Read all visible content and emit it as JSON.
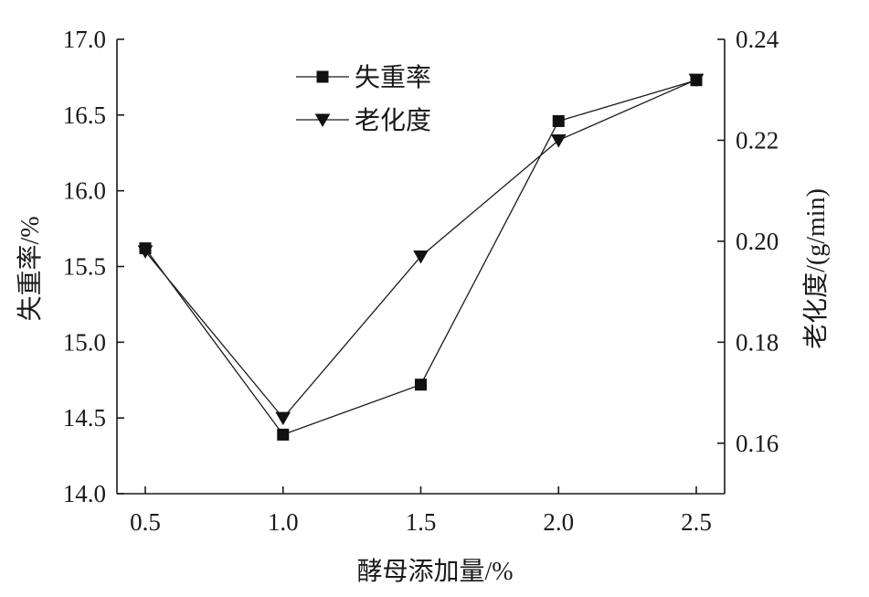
{
  "chart_data": {
    "type": "line",
    "xlabel": "酵母添加量/%",
    "ylabel_left": "失重率/%",
    "ylabel_right": "老化度/(g/min)",
    "x": [
      0.5,
      1.0,
      1.5,
      2.0,
      2.5
    ],
    "x_ticks": [
      "0.5",
      "1.0",
      "1.5",
      "2.0",
      "2.5"
    ],
    "xlim": [
      0.5,
      2.5
    ],
    "ylim_left": [
      14.0,
      17.0
    ],
    "y_ticks_left": [
      "14.0",
      "14.5",
      "15.0",
      "15.5",
      "16.0",
      "16.5",
      "17.0"
    ],
    "ylim_right": [
      0.15,
      0.24
    ],
    "y_ticks_right": [
      "0.16",
      "0.18",
      "0.20",
      "0.22",
      "0.24"
    ],
    "grid": false,
    "legend_position": "top-center",
    "series": [
      {
        "name": "失重率",
        "axis": "left",
        "marker": "square",
        "values": [
          15.62,
          14.39,
          14.72,
          16.46,
          16.73
        ]
      },
      {
        "name": "老化度",
        "axis": "right",
        "marker": "triangle-down",
        "values": [
          0.198,
          0.165,
          0.197,
          0.22,
          0.232
        ]
      }
    ]
  }
}
